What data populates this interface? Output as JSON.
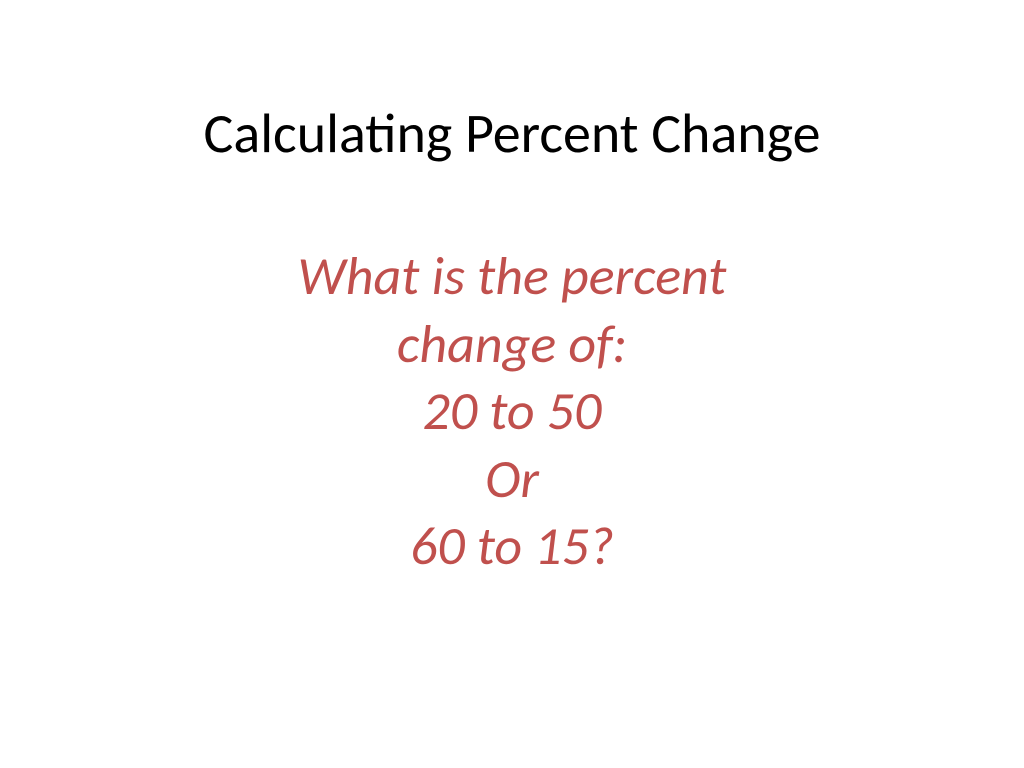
{
  "slide": {
    "title": "Calculating Percent Change",
    "subtitle_line1": "What is the percent",
    "subtitle_line2": "change of:",
    "subtitle_line3": "20 to  50",
    "subtitle_line4": "Or",
    "subtitle_line5": "60 to 15?",
    "title_color": "#000000",
    "subtitle_color": "#c0504d",
    "background_color": "#ffffff",
    "title_fontsize": 56,
    "subtitle_fontsize": 54
  }
}
